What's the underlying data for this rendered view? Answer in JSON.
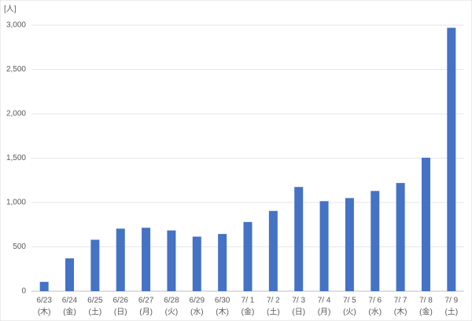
{
  "chart_data": {
    "type": "bar",
    "y_label": "[人]",
    "categories": [
      [
        "6/23",
        "(木)"
      ],
      [
        "6/24",
        "(金)"
      ],
      [
        "6/25",
        "(土)"
      ],
      [
        "6/26",
        "(日)"
      ],
      [
        "6/27",
        "(月)"
      ],
      [
        "6/28",
        "(火)"
      ],
      [
        "6/29",
        "(水)"
      ],
      [
        "6/30",
        "(木)"
      ],
      [
        "7/ 1",
        "(金)"
      ],
      [
        "7/ 2",
        "(土)"
      ],
      [
        "7/ 3",
        "(日)"
      ],
      [
        "7/ 4",
        "(月)"
      ],
      [
        "7/ 5",
        "(火)"
      ],
      [
        "7/ 6",
        "(水)"
      ],
      [
        "7/ 7",
        "(木)"
      ],
      [
        "7/ 8",
        "(金)"
      ],
      [
        "7/ 9",
        "(土)"
      ]
    ],
    "values": [
      105,
      370,
      580,
      705,
      715,
      685,
      615,
      645,
      780,
      905,
      1175,
      1015,
      1050,
      1130,
      1220,
      1505,
      2970
    ],
    "color": "#4472c4",
    "ylim": [
      0,
      3000
    ],
    "yticks": [
      0,
      500,
      {
        "value": 1000,
        "label": "1,000"
      },
      {
        "value": 1500,
        "label": "1,500"
      },
      {
        "value": 2000,
        "label": "2,000"
      },
      {
        "value": 2500,
        "label": "2,500"
      },
      {
        "value": 3000,
        "label": "3,000"
      }
    ],
    "grid": true
  }
}
